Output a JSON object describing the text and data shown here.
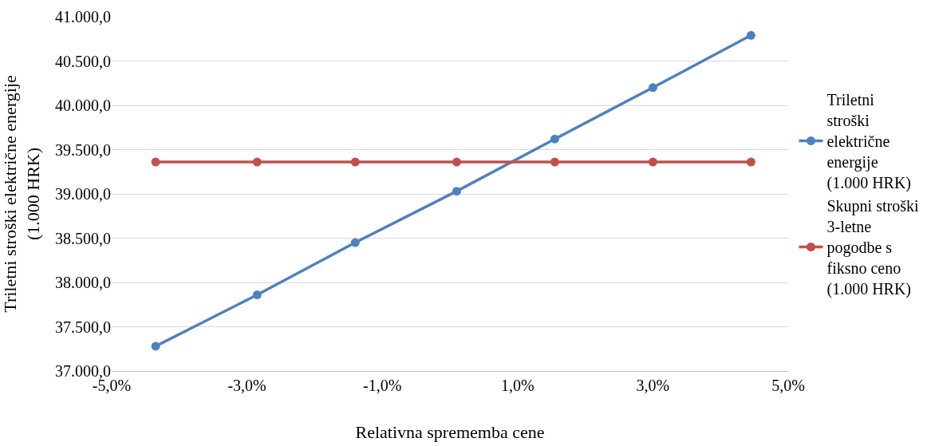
{
  "chart_data": {
    "type": "line",
    "xlabel": "Relativna sprememba cene",
    "ylabel": "Triletni stroški električne energije (1.000 HRK)",
    "x": [
      -4.35,
      -2.85,
      -1.4,
      0.1,
      1.55,
      3.0,
      4.45
    ],
    "series": [
      {
        "name": "Triletni stroški električne energije (1.000 HRK)",
        "color": "#4f81bd",
        "values": [
          37280,
          37860,
          38450,
          39030,
          39620,
          40200,
          40790
        ]
      },
      {
        "name": "Skupni stroški 3-letne pogodbe s fiksno ceno (1.000 HRK)",
        "color": "#c0504d",
        "values": [
          39360,
          39360,
          39360,
          39360,
          39360,
          39360,
          39360
        ]
      }
    ],
    "xlim": [
      -5,
      5
    ],
    "xticks": [
      {
        "value": -5,
        "label": "-5,0%"
      },
      {
        "value": -3,
        "label": "-3,0%"
      },
      {
        "value": -1,
        "label": "-1,0%"
      },
      {
        "value": 1,
        "label": "1,0%"
      },
      {
        "value": 3,
        "label": "3,0%"
      },
      {
        "value": 5,
        "label": "5,0%"
      }
    ],
    "ylim": [
      37000,
      41000
    ],
    "yticks": [
      {
        "value": 37000,
        "label": "37.000,0"
      },
      {
        "value": 37500,
        "label": "37.500,0"
      },
      {
        "value": 38000,
        "label": "38.000,0"
      },
      {
        "value": 38500,
        "label": "38.500,0"
      },
      {
        "value": 39000,
        "label": "39.000,0"
      },
      {
        "value": 39500,
        "label": "39.500,0"
      },
      {
        "value": 40000,
        "label": "40.000,0"
      },
      {
        "value": 40500,
        "label": "40.500,0"
      },
      {
        "value": 41000,
        "label": "41.000,0"
      }
    ],
    "grid": "y",
    "legend": "right",
    "marker": "circle",
    "line_style": "solid"
  }
}
